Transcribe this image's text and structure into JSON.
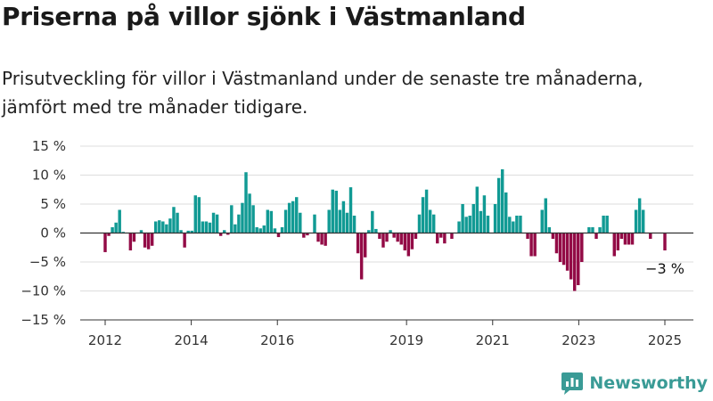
{
  "header": {
    "title": "Priserna på villor sjönk i Västmanland",
    "subtitle": "Prisutveckling för villor i Västmanland under de senaste tre månaderna, jämfört med tre månader tidigare."
  },
  "brand": {
    "name": "Newsworthy",
    "icon": "newsworthy-logo-icon"
  },
  "colors": {
    "positive": "#119a94",
    "negative": "#930b46",
    "grid": "#dddddd",
    "axis": "#333333"
  },
  "chart_data": {
    "type": "bar",
    "title": "Priserna på villor sjönk i Västmanland",
    "xlabel": "",
    "ylabel": "",
    "ylim": [
      -15,
      15
    ],
    "y_ticks": [
      15,
      10,
      5,
      0,
      -5,
      -10,
      -15
    ],
    "y_tick_labels": [
      "15 %",
      "10 %",
      "5 %",
      "0 %",
      "−5 %",
      "−10 %",
      "−15 %"
    ],
    "x_ticks": [
      2012,
      2014,
      2016,
      2019,
      2021,
      2023,
      2025
    ],
    "x_tick_labels": [
      "2012",
      "2014",
      "2016",
      "2019",
      "2021",
      "2023",
      "2025"
    ],
    "x_start": 2012.0,
    "x_end": 2025.0,
    "grid": true,
    "annotations": [
      {
        "x": 2025.0,
        "y": -3,
        "text": "−3 %"
      }
    ],
    "values": [
      -3.3,
      -0.5,
      1,
      1.8,
      4,
      0.2,
      0,
      -3,
      -1.5,
      0,
      0.5,
      -2.5,
      -2.8,
      -2.2,
      2,
      2.2,
      2,
      1.5,
      2.5,
      4.5,
      3.5,
      0.5,
      -2.5,
      0.4,
      0.4,
      6.5,
      6.2,
      2,
      2,
      1.8,
      3.5,
      3.2,
      -0.5,
      0.5,
      -0.3,
      4.8,
      1.5,
      3.2,
      5.2,
      10.5,
      6.8,
      4.8,
      1,
      0.8,
      1.3,
      4,
      3.8,
      0.8,
      -0.7,
      1,
      4,
      5.2,
      5.5,
      6.2,
      3.5,
      -0.8,
      -0.4,
      0,
      3.2,
      -1.5,
      -2,
      -2.2,
      4,
      7.5,
      7.3,
      4,
      5.5,
      3.5,
      7.9,
      3,
      -3.5,
      -8,
      -4.2,
      0.5,
      3.8,
      0.7,
      -1,
      -2.5,
      -1.5,
      0.5,
      -0.8,
      -1.5,
      -2,
      -3,
      -4,
      -2.8,
      -1,
      3.2,
      6.2,
      7.5,
      4,
      3.2,
      -1.8,
      -0.8,
      -1.8,
      0,
      -1,
      0,
      2,
      5,
      2.8,
      3,
      5,
      8,
      3.8,
      6.5,
      3,
      0,
      5,
      9.5,
      11,
      7,
      2.8,
      2,
      3,
      3,
      0,
      -1,
      -4,
      -4,
      0,
      4,
      6,
      1,
      -1,
      -3.5,
      -5,
      -5.5,
      -6.5,
      -8,
      -10,
      -9,
      -5,
      0,
      1,
      1,
      -1,
      1,
      3,
      3,
      0,
      -4,
      -3,
      -1,
      -2,
      -2,
      -2,
      4,
      6,
      4,
      0,
      -1,
      0,
      0,
      0,
      -3
    ]
  }
}
